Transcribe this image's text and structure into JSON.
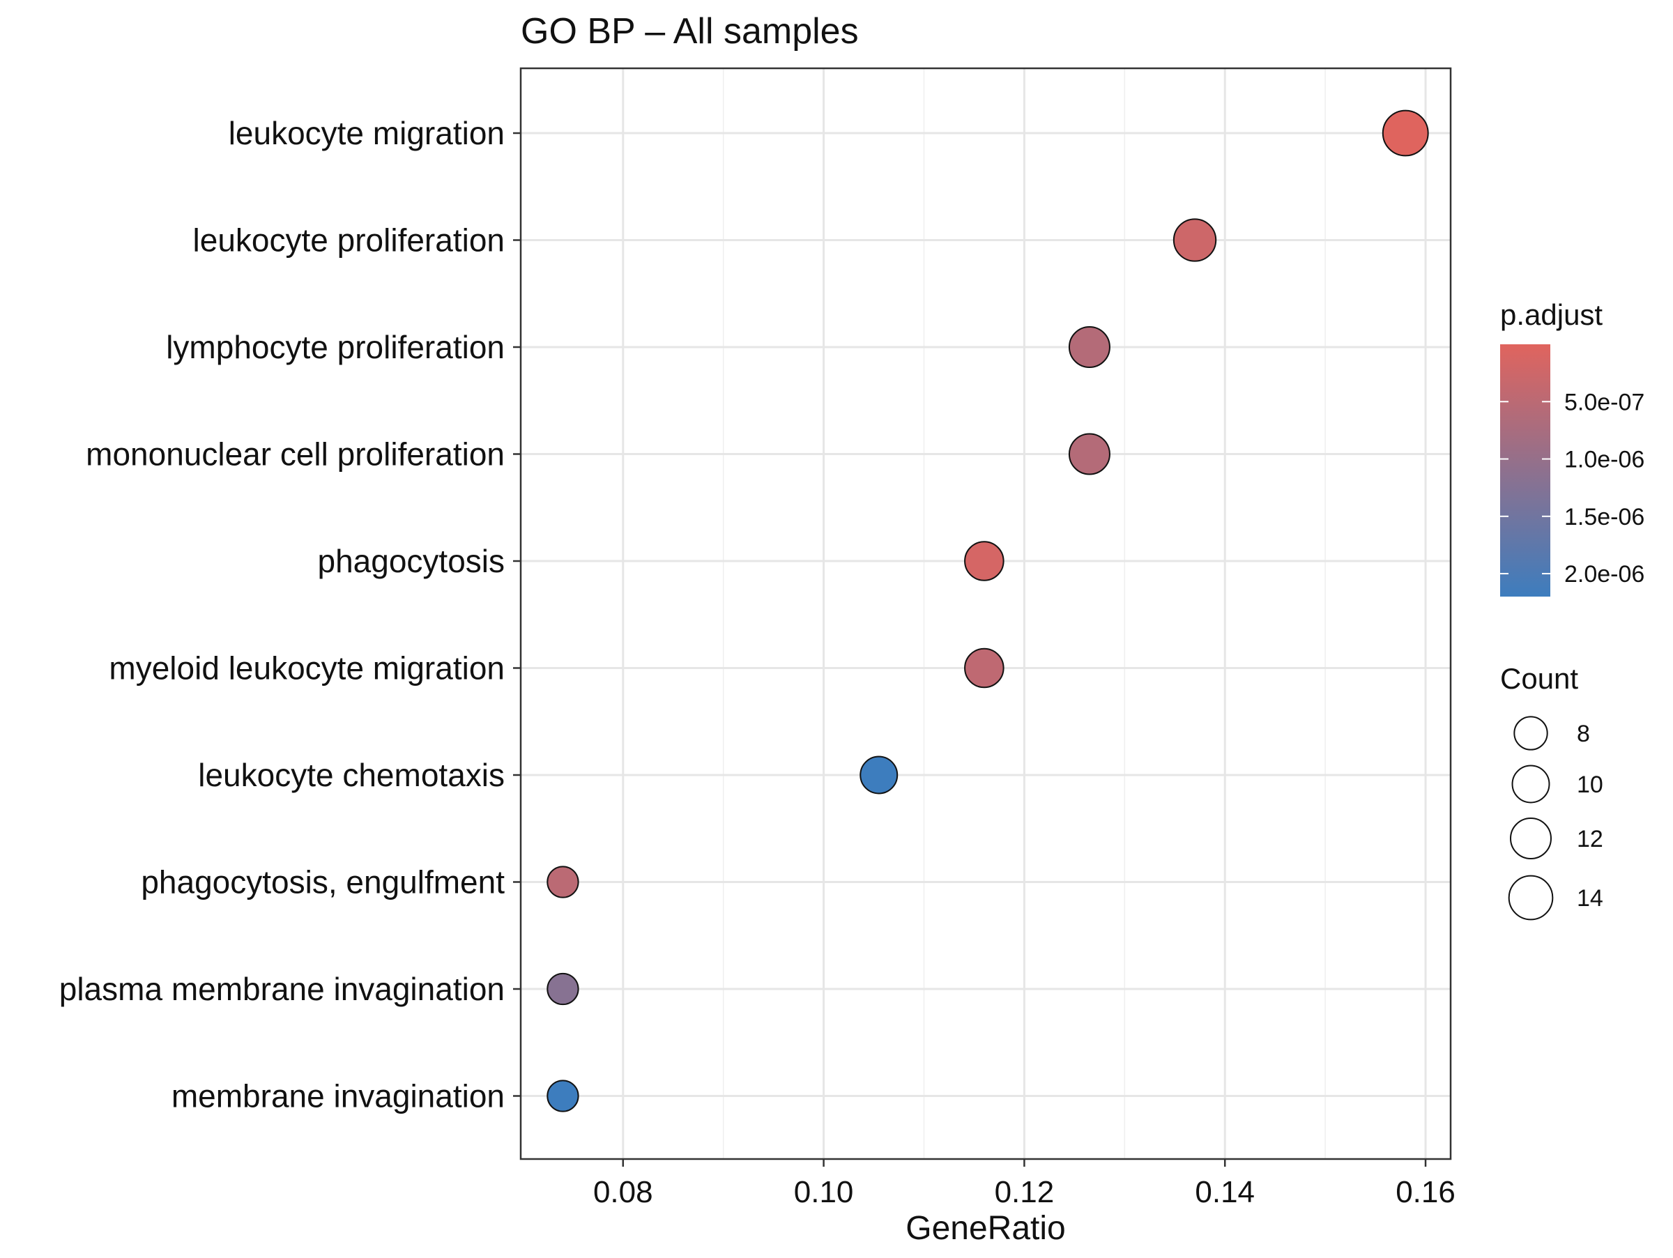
{
  "chart_data": {
    "type": "scatter",
    "title": "GO BP – All samples",
    "xlabel": "GeneRatio",
    "ylabel": "",
    "xlim": [
      0.0698,
      0.1625
    ],
    "xticks": [
      0.08,
      0.1,
      0.12,
      0.14,
      0.16
    ],
    "xtick_labels": [
      "0.08",
      "0.10",
      "0.12",
      "0.14",
      "0.16"
    ],
    "grid": true,
    "legend_placement": "right",
    "categories": [
      "leukocyte migration",
      "leukocyte proliferation",
      "lymphocyte proliferation",
      "mononuclear cell proliferation",
      "phagocytosis",
      "myeloid leukocyte migration",
      "leukocyte chemotaxis",
      "phagocytosis, engulfment",
      "plasma membrane invagination",
      "membrane invagination"
    ],
    "points": [
      {
        "term": "leukocyte migration",
        "gene_ratio": 0.158,
        "count": 15,
        "p_adjust": 1e-08
      },
      {
        "term": "leukocyte proliferation",
        "gene_ratio": 0.137,
        "count": 13,
        "p_adjust": 2.5e-07
      },
      {
        "term": "lymphocyte proliferation",
        "gene_ratio": 0.1265,
        "count": 12,
        "p_adjust": 6e-07
      },
      {
        "term": "mononuclear cell proliferation",
        "gene_ratio": 0.1265,
        "count": 12,
        "p_adjust": 6e-07
      },
      {
        "term": "phagocytosis",
        "gene_ratio": 0.116,
        "count": 11,
        "p_adjust": 1.5e-07
      },
      {
        "term": "myeloid leukocyte migration",
        "gene_ratio": 0.116,
        "count": 11,
        "p_adjust": 4.5e-07
      },
      {
        "term": "leukocyte chemotaxis",
        "gene_ratio": 0.1055,
        "count": 10,
        "p_adjust": 2.2e-06
      },
      {
        "term": "phagocytosis, engulfment",
        "gene_ratio": 0.074,
        "count": 7,
        "p_adjust": 5e-07
      },
      {
        "term": "plasma membrane invagination",
        "gene_ratio": 0.074,
        "count": 7,
        "p_adjust": 1.2e-06
      },
      {
        "term": "membrane invagination",
        "gene_ratio": 0.074,
        "count": 7,
        "p_adjust": 2.2e-06
      }
    ],
    "color_legend": {
      "title": "p.adjust",
      "low_color": "#E0645E",
      "high_color": "#3D7DBE",
      "range": [
        0,
        2.2e-06
      ],
      "ticks": [
        5e-07,
        1e-06,
        1.5e-06,
        2e-06
      ],
      "tick_labels": [
        "5.0e-07",
        "1.0e-06",
        "1.5e-06",
        "2.0e-06"
      ]
    },
    "size_legend": {
      "title": "Count",
      "values": [
        8,
        10,
        12,
        14
      ],
      "labels": [
        "8",
        "10",
        "12",
        "14"
      ]
    }
  }
}
